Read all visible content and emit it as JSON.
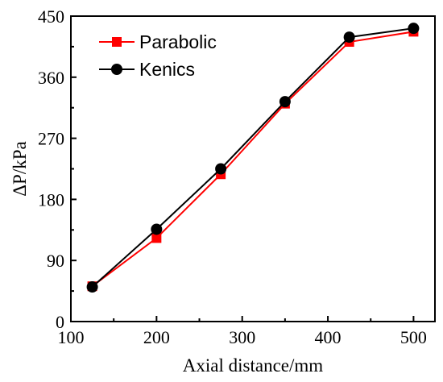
{
  "chart_data": {
    "type": "line",
    "title": "",
    "xlabel": "Axial distance/mm",
    "ylabel": "ΔP/kPa",
    "xlim": [
      100,
      525
    ],
    "ylim": [
      0,
      450
    ],
    "xticks": [
      100,
      200,
      300,
      400,
      500
    ],
    "yticks": [
      0,
      90,
      180,
      270,
      360,
      450
    ],
    "x_tick_labels": [
      "100",
      "200",
      "300",
      "400",
      "500"
    ],
    "y_tick_labels": [
      "0",
      "90",
      "180",
      "270",
      "360",
      "450"
    ],
    "grid": false,
    "legend_position": "top-left",
    "series": [
      {
        "name": "Parabolic",
        "color": "#ff0000",
        "marker": "square",
        "x": [
          125,
          200,
          275,
          350,
          425,
          500
        ],
        "y": [
          52,
          123,
          217,
          321,
          412,
          427
        ]
      },
      {
        "name": "Kenics",
        "color": "#000000",
        "marker": "circle",
        "x": [
          125,
          200,
          275,
          350,
          425,
          500
        ],
        "y": [
          51,
          136,
          225,
          324,
          419,
          432
        ]
      }
    ]
  }
}
